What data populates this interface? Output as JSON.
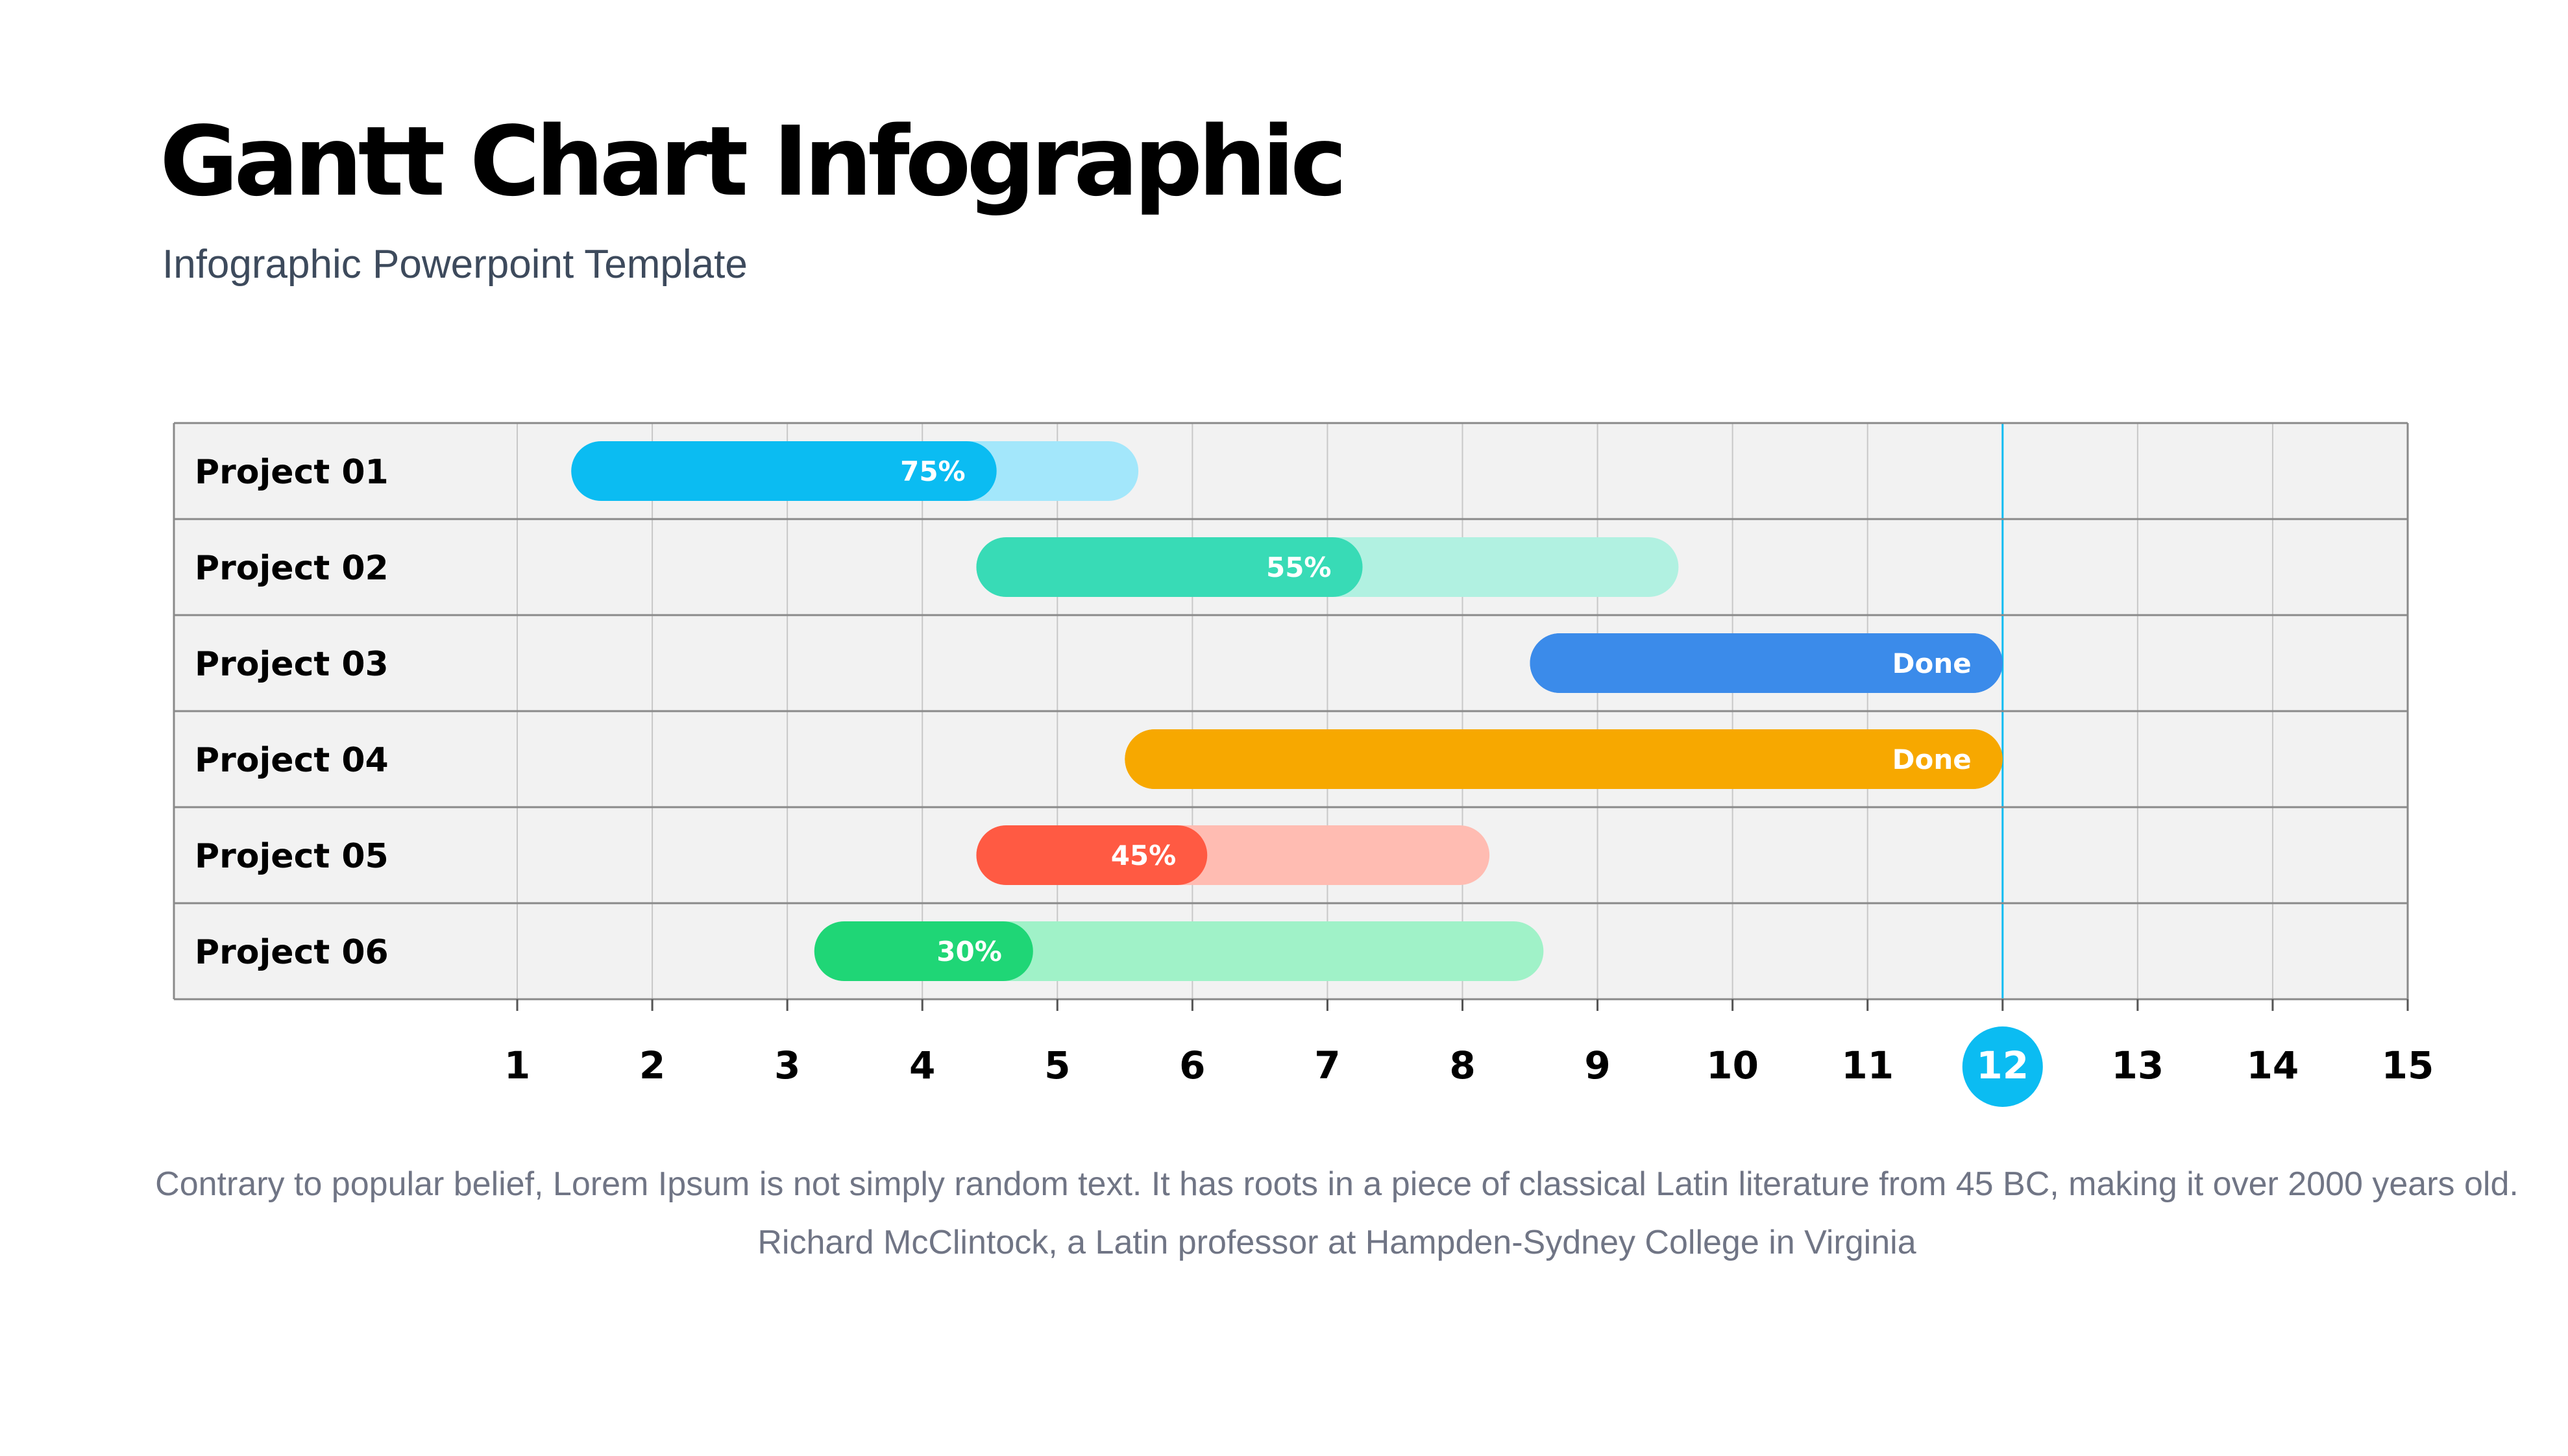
{
  "header": {
    "title": "Gantt Chart Infographic",
    "subtitle": "Infographic Powerpoint Template"
  },
  "footer": {
    "text": "Contrary to popular belief, Lorem Ipsum is not simply random text. It has roots in a piece of classical Latin literature from 45 BC, making it over 2000 years old. Richard McClintock, a Latin professor at Hampden-Sydney College in Virginia"
  },
  "chart_data": {
    "type": "gantt",
    "x_ticks": [
      1,
      2,
      3,
      4,
      5,
      6,
      7,
      8,
      9,
      10,
      11,
      12,
      13,
      14,
      15
    ],
    "xlim": [
      1,
      15
    ],
    "highlight_tick": 12,
    "grid": true,
    "tasks": [
      {
        "name": "Project 01",
        "start": 1.4,
        "end": 5.6,
        "progress": 0.75,
        "label": "75%",
        "color": "#0bbcf2",
        "light": "#a3e7fb"
      },
      {
        "name": "Project 02",
        "start": 4.4,
        "end": 9.6,
        "progress": 0.55,
        "label": "55%",
        "color": "#38dbb6",
        "light": "#b1f1e1"
      },
      {
        "name": "Project 03",
        "start": 8.5,
        "end": 12.0,
        "progress": 1.0,
        "label": "Done",
        "color": "#3b8bea",
        "light": "#3b8bea"
      },
      {
        "name": "Project 04",
        "start": 5.5,
        "end": 12.0,
        "progress": 1.0,
        "label": "Done",
        "color": "#f7a800",
        "light": "#f7a800"
      },
      {
        "name": "Project 05",
        "start": 4.4,
        "end": 8.2,
        "progress": 0.45,
        "label": "45%",
        "color": "#ff5a43",
        "light": "#ffbcb2"
      },
      {
        "name": "Project 06",
        "start": 3.2,
        "end": 8.6,
        "progress": 0.3,
        "label": "30%",
        "color": "#1fd676",
        "light": "#a0f2c8"
      }
    ],
    "colors": {
      "highlight": "#0bbcf2",
      "grid_bg": "#f2f2f2",
      "grid_line": "#c8c8c8",
      "row_border": "#8a8a8a"
    }
  }
}
